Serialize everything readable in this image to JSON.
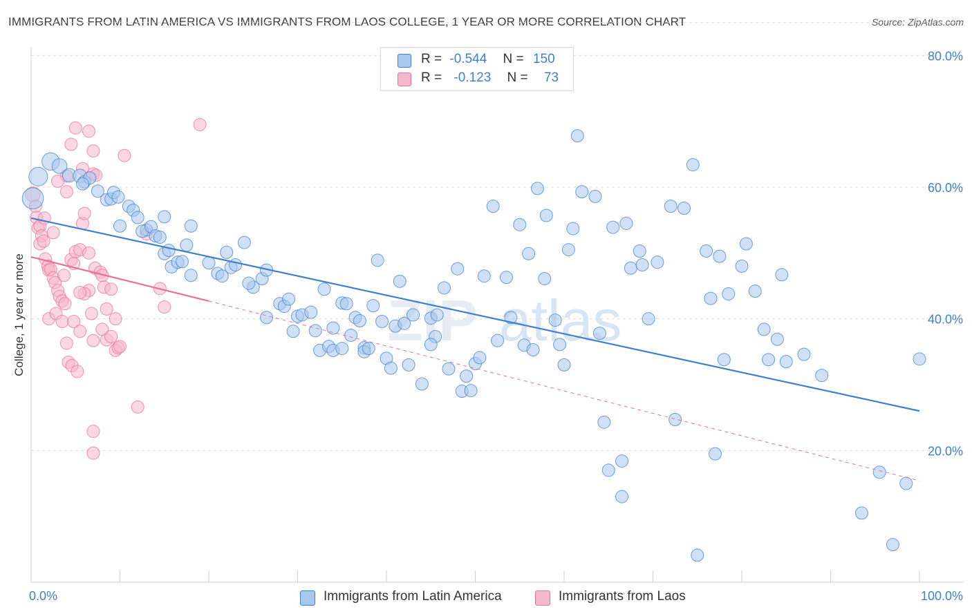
{
  "title": "IMMIGRANTS FROM LATIN AMERICA VS IMMIGRANTS FROM LAOS COLLEGE, 1 YEAR OR MORE CORRELATION CHART",
  "source": "Source: ZipAtlas.com",
  "colors": {
    "blue": "#3f7fcf",
    "blue_fill": "#a9c8ef",
    "pink": "#e8709a",
    "pink_fill": "#f5b7cb",
    "grid": "#dcdcdc"
  },
  "legend": {
    "rows": [
      {
        "r_label": "R =",
        "r_value": "-0.544",
        "n_label": "N =",
        "n_value": "150"
      },
      {
        "r_label": "R =",
        "r_value": "-0.123",
        "n_label": "N =",
        "n_value": "73"
      }
    ]
  },
  "bottom_legend": [
    "Immigrants from Latin America",
    "Immigrants from Laos"
  ],
  "watermark": {
    "a": "ZIP",
    "b": "atlas"
  },
  "chart_data": {
    "type": "scatter",
    "ylabel": "College, 1 year or more",
    "xlim": [
      0,
      100
    ],
    "ylim": [
      0,
      85
    ],
    "y_ticks": [
      20,
      40,
      60,
      80
    ],
    "y_tick_labels": [
      "20.0%",
      "40.0%",
      "60.0%",
      "80.0%"
    ],
    "x_tick_labels": [
      "0.0%",
      "100.0%"
    ],
    "grid": "horizontal-dashed",
    "legend_position": "top-center",
    "series": [
      {
        "name": "Immigrants from Latin America",
        "color": "#3f7fcf",
        "r": -0.544,
        "n": 150,
        "trend": {
          "x": [
            0,
            100
          ],
          "y": [
            55.3,
            26.0
          ],
          "style": "solid"
        },
        "points": [
          [
            0.2,
            58.3,
            1.7
          ],
          [
            0.8,
            61.6,
            1.5
          ],
          [
            2.2,
            63.9,
            1.4
          ],
          [
            3.2,
            63.2,
            1.2
          ],
          [
            4.3,
            61.8,
            1.1
          ],
          [
            5.5,
            61.7,
            1.1
          ],
          [
            6.0,
            60.8,
            1
          ],
          [
            6.6,
            61.4,
            1
          ],
          [
            5.8,
            60.5,
            1
          ],
          [
            7.5,
            59.4,
            1
          ],
          [
            8.5,
            58.1,
            1
          ],
          [
            9.0,
            58.2,
            1
          ],
          [
            9.3,
            59.2,
            1
          ],
          [
            9.8,
            58.5,
            1
          ],
          [
            11.0,
            57.1,
            1
          ],
          [
            11.5,
            56.5,
            1
          ],
          [
            10.0,
            54.1,
            1
          ],
          [
            12.0,
            55.4,
            1
          ],
          [
            13.0,
            53.5,
            1
          ],
          [
            12.5,
            53.3,
            1
          ],
          [
            13.5,
            54.0,
            1
          ],
          [
            14.0,
            52.6,
            1
          ],
          [
            14.5,
            52.4,
            1
          ],
          [
            15.0,
            55.5,
            1
          ],
          [
            15.0,
            49.9,
            1
          ],
          [
            15.5,
            50.4,
            1
          ],
          [
            15.8,
            47.9,
            1
          ],
          [
            16.5,
            48.6,
            1
          ],
          [
            17.0,
            48.7,
            1
          ],
          [
            18.0,
            46.6,
            1
          ],
          [
            17.5,
            51.2,
            1
          ],
          [
            18.0,
            54.1,
            1
          ],
          [
            20.0,
            48.5,
            1
          ],
          [
            21.0,
            46.9,
            1
          ],
          [
            21.5,
            46.5,
            1
          ],
          [
            22.0,
            50.1,
            1
          ],
          [
            22.5,
            47.8,
            1
          ],
          [
            23.0,
            48.2,
            1
          ],
          [
            24.0,
            51.6,
            1
          ],
          [
            25.0,
            44.8,
            1
          ],
          [
            24.5,
            45.4,
            1
          ],
          [
            26.0,
            46.1,
            1
          ],
          [
            26.5,
            47.4,
            1
          ],
          [
            26.5,
            40.2,
            1
          ],
          [
            28.0,
            42.3,
            1
          ],
          [
            28.5,
            41.9,
            1
          ],
          [
            29.0,
            43.0,
            1
          ],
          [
            29.5,
            38.1,
            1
          ],
          [
            30.0,
            40.4,
            1
          ],
          [
            30.5,
            40.6,
            1
          ],
          [
            31.5,
            41.0,
            1
          ],
          [
            32.0,
            38.2,
            1
          ],
          [
            33.0,
            44.5,
            1
          ],
          [
            32.5,
            35.2,
            1
          ],
          [
            33.5,
            35.8,
            1
          ],
          [
            34.0,
            35.2,
            1
          ],
          [
            34.0,
            38.6,
            1
          ],
          [
            35.0,
            42.4,
            1
          ],
          [
            35.0,
            35.5,
            1
          ],
          [
            35.5,
            42.3,
            1
          ],
          [
            36.0,
            37.5,
            1
          ],
          [
            36.5,
            40.2,
            1
          ],
          [
            37.0,
            39.7,
            1
          ],
          [
            37.5,
            35.6,
            1
          ],
          [
            37.5,
            35.0,
            1
          ],
          [
            38.0,
            35.5,
            1
          ],
          [
            38.5,
            42.0,
            1
          ],
          [
            39.5,
            39.6,
            1
          ],
          [
            39.0,
            48.9,
            1
          ],
          [
            40.0,
            34.0,
            1
          ],
          [
            40.5,
            32.5,
            1
          ],
          [
            41.0,
            38.9,
            1
          ],
          [
            41.5,
            45.7,
            1
          ],
          [
            42.0,
            39.3,
            1
          ],
          [
            42.5,
            33.0,
            1
          ],
          [
            43.0,
            40.6,
            1
          ],
          [
            44.0,
            30.1,
            1
          ],
          [
            45.0,
            40.1,
            1
          ],
          [
            45.5,
            37.3,
            1
          ],
          [
            45.0,
            36.1,
            1
          ],
          [
            45.7,
            40.6,
            1
          ],
          [
            46.5,
            44.7,
            1
          ],
          [
            47.0,
            32.4,
            1
          ],
          [
            48.0,
            47.6,
            1
          ],
          [
            48.5,
            29.0,
            1
          ],
          [
            49.0,
            31.3,
            1
          ],
          [
            49.5,
            29.1,
            1
          ],
          [
            50.0,
            33.2,
            1
          ],
          [
            50.5,
            34.1,
            1
          ],
          [
            51.0,
            46.5,
            1
          ],
          [
            52.0,
            57.1,
            1
          ],
          [
            52.5,
            36.7,
            1
          ],
          [
            53.5,
            46.3,
            1
          ],
          [
            54.0,
            40.2,
            1
          ],
          [
            55.0,
            54.3,
            1
          ],
          [
            55.5,
            36.0,
            1
          ],
          [
            56.0,
            49.9,
            1
          ],
          [
            56.5,
            35.3,
            1
          ],
          [
            57.0,
            59.8,
            1
          ],
          [
            57.8,
            46.1,
            1
          ],
          [
            58.0,
            55.7,
            1
          ],
          [
            59.0,
            39.8,
            1
          ],
          [
            59.5,
            36.1,
            1
          ],
          [
            60.0,
            33.0,
            1
          ],
          [
            60.5,
            50.5,
            1
          ],
          [
            61.0,
            53.7,
            1
          ],
          [
            61.5,
            67.8,
            1
          ],
          [
            62.0,
            59.3,
            1
          ],
          [
            63.5,
            58.6,
            1
          ],
          [
            64.0,
            37.8,
            1
          ],
          [
            64.5,
            24.3,
            1
          ],
          [
            65.0,
            17.0,
            1
          ],
          [
            65.5,
            53.9,
            1
          ],
          [
            66.5,
            18.4,
            1
          ],
          [
            66.5,
            13.0,
            1
          ],
          [
            67.0,
            54.5,
            1
          ],
          [
            67.5,
            47.7,
            1
          ],
          [
            68.5,
            50.3,
            1
          ],
          [
            68.8,
            48.2,
            1
          ],
          [
            69.5,
            40.0,
            1
          ],
          [
            70.5,
            48.6,
            1
          ],
          [
            72.0,
            57.1,
            1
          ],
          [
            72.5,
            24.7,
            1
          ],
          [
            73.5,
            56.8,
            1
          ],
          [
            74.5,
            63.4,
            1
          ],
          [
            75.0,
            4.1,
            1
          ],
          [
            76.0,
            50.3,
            1
          ],
          [
            76.5,
            43.1,
            1
          ],
          [
            77.0,
            19.5,
            1
          ],
          [
            77.5,
            49.5,
            1
          ],
          [
            78.0,
            33.8,
            1
          ],
          [
            78.5,
            43.8,
            1
          ],
          [
            80.0,
            48.0,
            1
          ],
          [
            80.5,
            51.4,
            1
          ],
          [
            81.5,
            44.2,
            1
          ],
          [
            82.5,
            38.4,
            1
          ],
          [
            83.0,
            33.8,
            1
          ],
          [
            84.0,
            36.9,
            1
          ],
          [
            84.5,
            46.7,
            1
          ],
          [
            85.0,
            33.5,
            1
          ],
          [
            87.0,
            34.6,
            1
          ],
          [
            89.0,
            31.4,
            1
          ],
          [
            93.5,
            10.5,
            1
          ],
          [
            95.5,
            16.7,
            1
          ],
          [
            97.0,
            5.7,
            1
          ],
          [
            98.5,
            15.0,
            1
          ],
          [
            100.0,
            33.9,
            1
          ]
        ]
      },
      {
        "name": "Immigrants from Laos",
        "color": "#e8709a",
        "r": -0.123,
        "n": 73,
        "trend": {
          "x": [
            0,
            20
          ],
          "y": [
            49.4,
            42.7
          ],
          "style": "solid"
        },
        "trend_extended": {
          "x": [
            20,
            100
          ],
          "y": [
            42.7,
            15.4
          ],
          "style": "dashed"
        },
        "points": [
          [
            0.2,
            58.9,
            1.2
          ],
          [
            0.5,
            57.1,
            1
          ],
          [
            0.6,
            55.4,
            1
          ],
          [
            0.8,
            53.8,
            1
          ],
          [
            1.0,
            54.1,
            1
          ],
          [
            1.2,
            52.6,
            1
          ],
          [
            1.0,
            51.4,
            1
          ],
          [
            1.4,
            51.8,
            1
          ],
          [
            1.6,
            49.1,
            1
          ],
          [
            1.9,
            48.0,
            1
          ],
          [
            2.0,
            47.4,
            1
          ],
          [
            2.2,
            47.5,
            1
          ],
          [
            2.5,
            46.2,
            1
          ],
          [
            2.7,
            45.5,
            1
          ],
          [
            3.0,
            44.3,
            1
          ],
          [
            3.2,
            43.4,
            1
          ],
          [
            3.5,
            42.7,
            1
          ],
          [
            3.8,
            42.3,
            1
          ],
          [
            2.0,
            40.0,
            1
          ],
          [
            2.8,
            40.8,
            1
          ],
          [
            3.5,
            39.6,
            1
          ],
          [
            4.0,
            36.3,
            1
          ],
          [
            4.2,
            33.4,
            1
          ],
          [
            4.6,
            32.9,
            1
          ],
          [
            5.2,
            32.0,
            1
          ],
          [
            4.5,
            49.0,
            1
          ],
          [
            4.8,
            48.4,
            1
          ],
          [
            5.0,
            50.2,
            1
          ],
          [
            5.5,
            50.5,
            1
          ],
          [
            5.8,
            54.5,
            1
          ],
          [
            6.0,
            56.0,
            1
          ],
          [
            4.0,
            61.7,
            1
          ],
          [
            4.5,
            66.5,
            1
          ],
          [
            5.0,
            69.0,
            1
          ],
          [
            5.8,
            62.8,
            1
          ],
          [
            6.5,
            68.5,
            1
          ],
          [
            7.0,
            65.5,
            1
          ],
          [
            7.0,
            62.0,
            1
          ],
          [
            7.3,
            61.8,
            1
          ],
          [
            6.5,
            50.0,
            1
          ],
          [
            7.2,
            47.7,
            1
          ],
          [
            7.8,
            47.1,
            1
          ],
          [
            8.0,
            46.6,
            1
          ],
          [
            8.2,
            44.8,
            1
          ],
          [
            9.0,
            44.5,
            1
          ],
          [
            8.5,
            41.5,
            1
          ],
          [
            9.5,
            40.0,
            1
          ],
          [
            8.0,
            38.4,
            1
          ],
          [
            7.0,
            36.7,
            1
          ],
          [
            8.5,
            36.8,
            1
          ],
          [
            9.0,
            37.3,
            1
          ],
          [
            9.5,
            35.2,
            1
          ],
          [
            9.8,
            35.6,
            1
          ],
          [
            10.0,
            35.8,
            1
          ],
          [
            6.5,
            44.3,
            1
          ],
          [
            6.0,
            43.8,
            1
          ],
          [
            5.5,
            44.0,
            1
          ],
          [
            7.0,
            22.9,
            1
          ],
          [
            7.0,
            19.6,
            1
          ],
          [
            12.0,
            26.6,
            1
          ],
          [
            13.0,
            52.9,
            1
          ],
          [
            14.5,
            44.6,
            1
          ],
          [
            15.0,
            41.8,
            1
          ],
          [
            19.0,
            69.5,
            1
          ],
          [
            10.5,
            64.8,
            1
          ],
          [
            4.0,
            59.3,
            1
          ],
          [
            3.0,
            60.9,
            1
          ],
          [
            1.5,
            55.3,
            1
          ],
          [
            2.5,
            53.1,
            1
          ],
          [
            3.7,
            46.6,
            1
          ],
          [
            4.8,
            39.6,
            1
          ],
          [
            5.5,
            38.1,
            1
          ],
          [
            6.8,
            40.8,
            1
          ]
        ]
      }
    ]
  }
}
